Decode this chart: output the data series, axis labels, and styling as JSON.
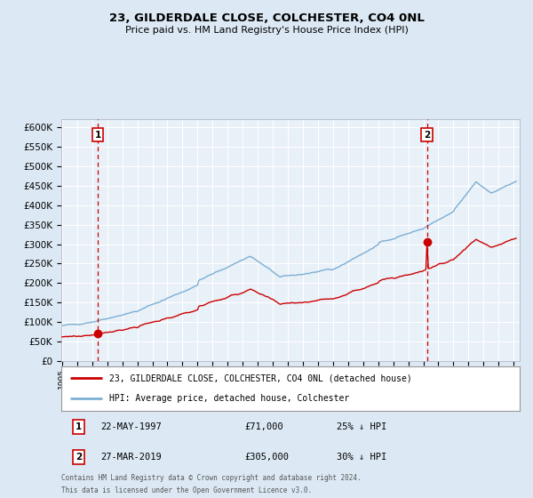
{
  "title": "23, GILDERDALE CLOSE, COLCHESTER, CO4 0NL",
  "subtitle": "Price paid vs. HM Land Registry's House Price Index (HPI)",
  "legend_line1": "23, GILDERDALE CLOSE, COLCHESTER, CO4 0NL (detached house)",
  "legend_line2": "HPI: Average price, detached house, Colchester",
  "sale1_date": "22-MAY-1997",
  "sale1_price": "£71,000",
  "sale1_hpi": "25% ↓ HPI",
  "sale2_date": "27-MAR-2019",
  "sale2_price": "£305,000",
  "sale2_hpi": "30% ↓ HPI",
  "footnote1": "Contains HM Land Registry data © Crown copyright and database right 2024.",
  "footnote2": "This data is licensed under the Open Government Licence v3.0.",
  "red_color": "#cc0000",
  "blue_color": "#7bafd4",
  "bg_color": "#dce9f5",
  "plot_bg": "#e8f0f8",
  "grid_color": "#ffffff",
  "ylim_min": 0,
  "ylim_max": 620000,
  "sale1_year": 1997.38,
  "sale1_value": 71000,
  "sale2_year": 2019.24,
  "sale2_value": 305000
}
